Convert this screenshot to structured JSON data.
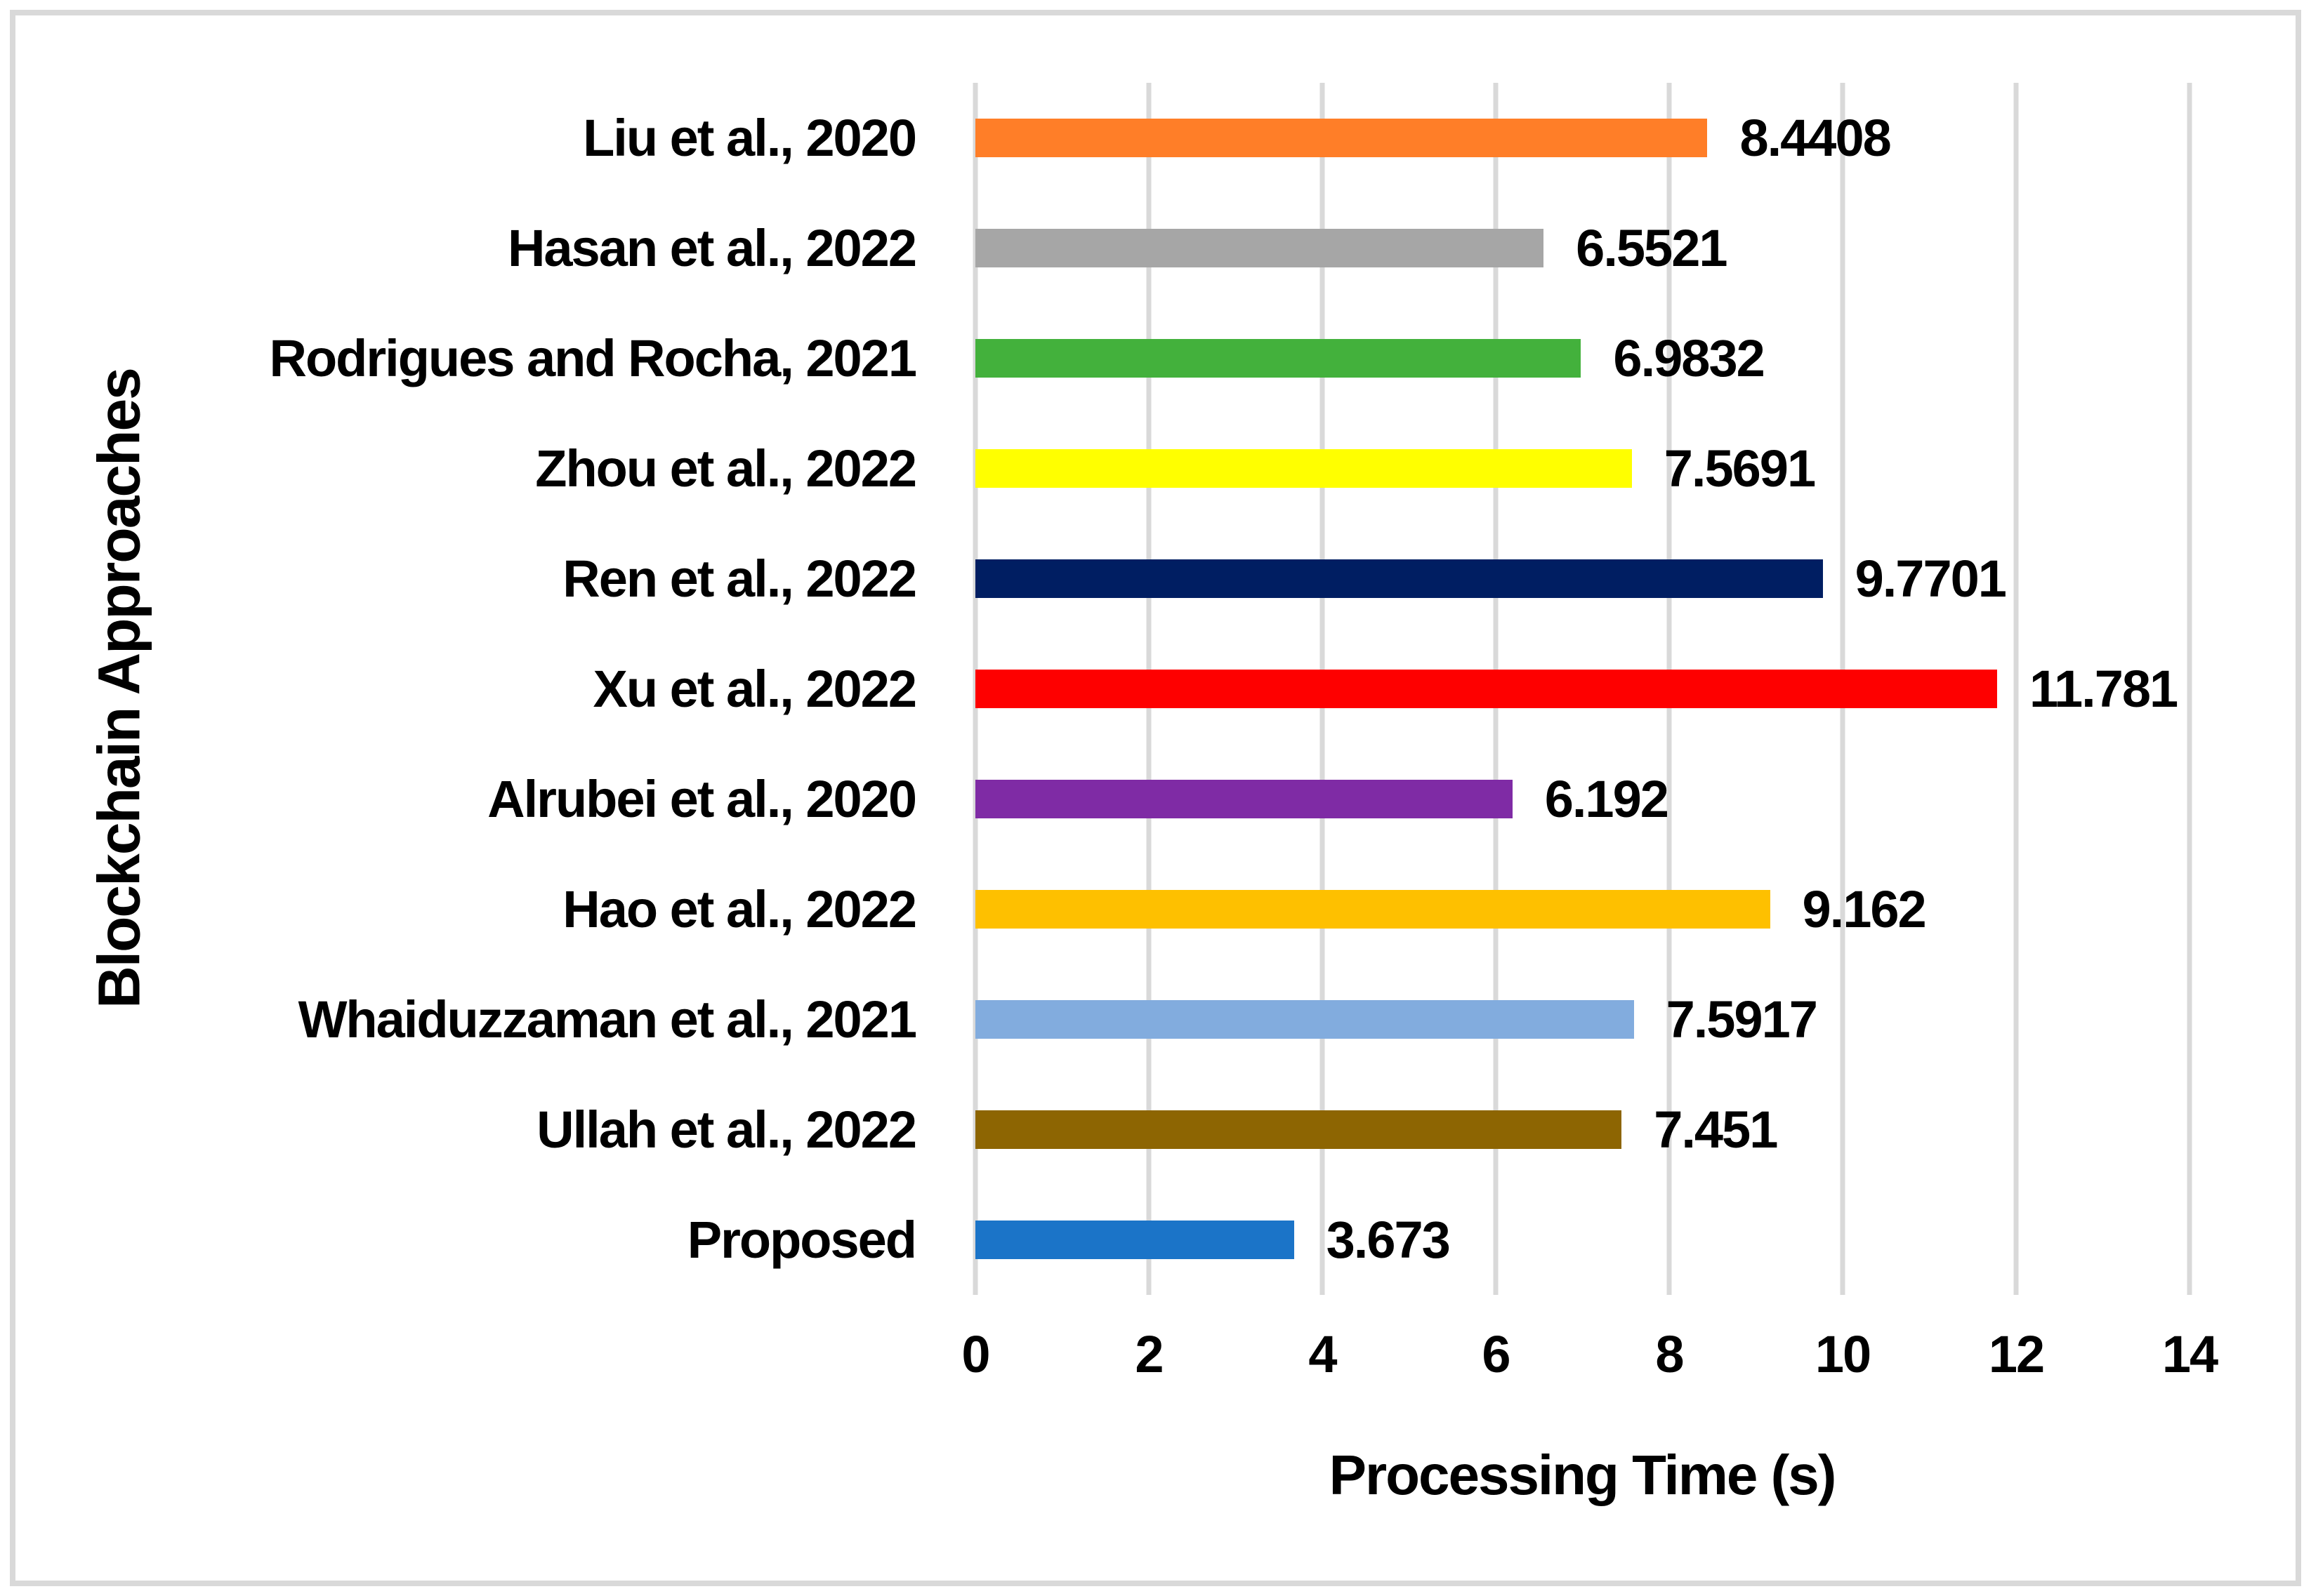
{
  "chart_data": {
    "type": "bar",
    "orientation": "horizontal",
    "title": "",
    "xlabel": "Processing Time (s)",
    "ylabel": "Blockchain Approaches",
    "xlim": [
      0,
      14
    ],
    "x_ticks": [
      0,
      2,
      4,
      6,
      8,
      10,
      12,
      14
    ],
    "grid": "vertical-gridlines-on",
    "gridline_color": "#D9D9D9",
    "frame_border_color": "#D9D9D9",
    "legend": "none",
    "categories": [
      "Liu et al., 2020",
      "Hasan et al., 2022",
      "Rodrigues and Rocha, 2021",
      "Zhou et al., 2022",
      "Ren et al., 2022",
      "Xu et al., 2022",
      "Alrubei et al., 2020",
      "Hao et al., 2022",
      "Whaiduzzaman et al., 2021",
      "Ullah et al., 2022",
      "Proposed"
    ],
    "values": [
      8.4408,
      6.5521,
      6.9832,
      7.5691,
      9.7701,
      11.781,
      6.192,
      9.162,
      7.5917,
      7.451,
      3.673
    ],
    "value_labels": [
      "8.4408",
      "6.5521",
      "6.9832",
      "7.5691",
      "9.7701",
      "11.781",
      "6.192",
      "9.162",
      "7.5917",
      "7.451",
      "3.673"
    ],
    "bar_colors": [
      "#FF7E28",
      "#A6A6A6",
      "#43B13C",
      "#FFFF00",
      "#001E62",
      "#FE0000",
      "#7F2BA5",
      "#FEC000",
      "#82ACDE",
      "#8D6502",
      "#1B74C8"
    ]
  }
}
